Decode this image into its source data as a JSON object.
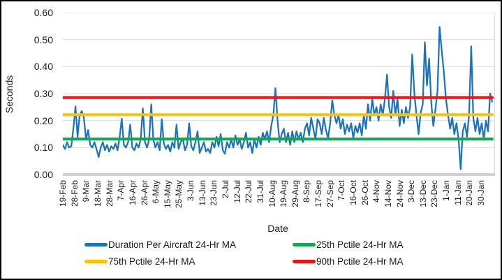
{
  "chart_data": {
    "type": "line",
    "title": "",
    "xlabel": "Date",
    "ylabel": "Seconds",
    "ylim": [
      0,
      0.6
    ],
    "ytick_step": 0.1,
    "ytick_labels": [
      "0.00",
      "0.10",
      "0.20",
      "0.30",
      "0.40",
      "0.50",
      "0.60"
    ],
    "grid": "horizontal",
    "legend_position": "bottom",
    "x_categories": [
      "19-Feb",
      "28-Feb",
      "9-Mar",
      "18-Mar",
      "28-Mar",
      "7-Apr",
      "16-Apr",
      "26-Apr",
      "6-May",
      "15-May",
      "25-May",
      "3-Jun",
      "13-Jun",
      "23-Jun",
      "2-Jul",
      "12-Jul",
      "22-Jul",
      "31-Jul",
      "10-Aug",
      "19-Aug",
      "29-Aug",
      "8-Sep",
      "17-Sep",
      "27-Sep",
      "7-Oct",
      "16-Oct",
      "26-Oct",
      "4-Nov",
      "14-Nov",
      "24-Nov",
      "3-Dec",
      "13-Dec",
      "23-Dec",
      "1-Jan",
      "11-Jan",
      "20-Jan",
      "30-Jan"
    ],
    "axis_colors": {
      "grid": "#D9D9D9",
      "axis_band": "#D0CECE",
      "text": "#1A1A1A"
    },
    "series": [
      {
        "name": "Duration Per Aircraft 24-Hr MA",
        "type": "line",
        "color": "#1B73BF",
        "values": [
          0.11,
          0.095,
          0.12,
          0.1,
          0.105,
          0.17,
          0.253,
          0.14,
          0.22,
          0.235,
          0.21,
          0.13,
          0.165,
          0.11,
          0.1,
          0.12,
          0.095,
          0.065,
          0.1,
          0.12,
          0.09,
          0.11,
          0.085,
          0.105,
          0.095,
          0.115,
          0.09,
          0.14,
          0.207,
          0.11,
          0.1,
          0.12,
          0.185,
          0.1,
          0.09,
          0.115,
          0.1,
          0.13,
          0.245,
          0.12,
          0.1,
          0.13,
          0.26,
          0.13,
          0.1,
          0.12,
          0.09,
          0.205,
          0.115,
          0.095,
          0.11,
          0.085,
          0.12,
          0.1,
          0.185,
          0.095,
          0.12,
          0.135,
          0.09,
          0.11,
          0.19,
          0.105,
          0.09,
          0.12,
          0.16,
          0.08,
          0.1,
          0.12,
          0.085,
          0.095,
          0.08,
          0.12,
          0.1,
          0.14,
          0.105,
          0.15,
          0.09,
          0.077,
          0.12,
          0.1,
          0.13,
          0.1,
          0.145,
          0.11,
          0.13,
          0.095,
          0.12,
          0.155,
          0.1,
          0.12,
          0.08,
          0.13,
          0.1,
          0.14,
          0.11,
          0.155,
          0.13,
          0.16,
          0.12,
          0.18,
          0.22,
          0.32,
          0.2,
          0.12,
          0.15,
          0.17,
          0.12,
          0.155,
          0.11,
          0.16,
          0.12,
          0.16,
          0.13,
          0.155,
          0.12,
          0.17,
          0.19,
          0.145,
          0.21,
          0.17,
          0.13,
          0.205,
          0.19,
          0.15,
          0.21,
          0.165,
          0.135,
          0.19,
          0.275,
          0.22,
          0.19,
          0.22,
          0.17,
          0.205,
          0.15,
          0.185,
          0.16,
          0.19,
          0.135,
          0.18,
          0.155,
          0.19,
          0.145,
          0.22,
          0.17,
          0.26,
          0.2,
          0.28,
          0.22,
          0.25,
          0.2,
          0.26,
          0.22,
          0.28,
          0.37,
          0.25,
          0.21,
          0.31,
          0.22,
          0.28,
          0.18,
          0.24,
          0.19,
          0.25,
          0.21,
          0.25,
          0.445,
          0.3,
          0.22,
          0.15,
          0.23,
          0.26,
          0.49,
          0.33,
          0.43,
          0.27,
          0.18,
          0.24,
          0.31,
          0.547,
          0.46,
          0.38,
          0.28,
          0.22,
          0.17,
          0.21,
          0.15,
          0.19,
          0.13,
          0.02,
          0.16,
          0.19,
          0.14,
          0.22,
          0.475,
          0.21,
          0.16,
          0.21,
          0.15,
          0.19,
          0.13,
          0.2,
          0.16,
          0.3,
          0.27
        ]
      },
      {
        "name": "25th Pctile 24-Hr MA",
        "type": "constant",
        "color": "#13A751",
        "value": 0.132
      },
      {
        "name": "75th Pctile 24-Hr MA",
        "type": "constant",
        "color": "#FFC104",
        "value": 0.222
      },
      {
        "name": "90th Pctile 24-Hr MA",
        "type": "constant",
        "color": "#F01111",
        "value": 0.285
      }
    ]
  }
}
